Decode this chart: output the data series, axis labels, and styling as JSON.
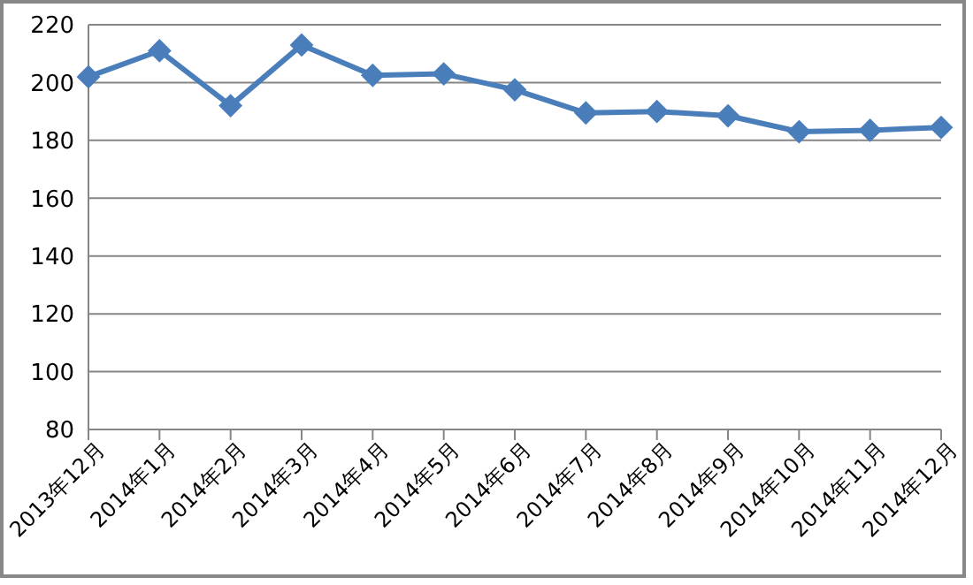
{
  "chart_data": {
    "type": "line",
    "categories": [
      "2013年12月",
      "2014年1月",
      "2014年2月",
      "2014年3月",
      "2014年4月",
      "2014年5月",
      "2014年6月",
      "2014年7月",
      "2014年8月",
      "2014年9月",
      "2014年10月",
      "2014年11月",
      "2014年12月"
    ],
    "series": [
      {
        "color": "#4a7ebb",
        "values": [
          202,
          211,
          192,
          213,
          202.5,
          203,
          197.5,
          189.5,
          190,
          188.5,
          183,
          183.5,
          184.5
        ]
      }
    ],
    "ylim": [
      80,
      220
    ],
    "yticks": [
      80,
      100,
      120,
      140,
      160,
      180,
      200,
      220
    ],
    "grid": "y",
    "legend": false,
    "marker": "diamond",
    "line_style": "solid"
  }
}
